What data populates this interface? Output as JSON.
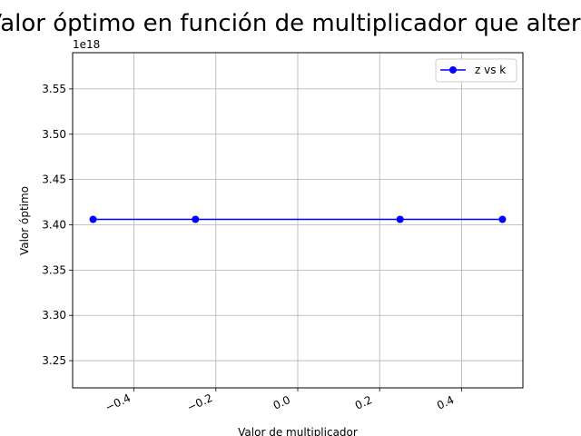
{
  "chart_data": {
    "type": "line",
    "title": "Valor óptimo en función de multiplicador que altera",
    "xlabel": "Valor de multiplicador",
    "ylabel": "Valor óptimo",
    "y_offset_label": "1e18",
    "y_scale": 1e+18,
    "xlim": [
      -0.55,
      0.55
    ],
    "ylim": [
      3.22,
      3.59
    ],
    "x_ticks": [
      -0.4,
      -0.2,
      0.0,
      0.2,
      0.4
    ],
    "x_tick_labels": [
      "−0.4",
      "−0.2",
      "0.0",
      "0.2",
      "0.4"
    ],
    "y_ticks": [
      3.25,
      3.3,
      3.35,
      3.4,
      3.45,
      3.5,
      3.55
    ],
    "y_tick_labels": [
      "3.25",
      "3.30",
      "3.35",
      "3.40",
      "3.45",
      "3.50",
      "3.55"
    ],
    "grid": true,
    "legend_position": "top-right",
    "series": [
      {
        "name": "z vs k",
        "color": "#0000ff",
        "marker": "circle",
        "x": [
          -0.5,
          -0.25,
          0.25,
          0.5
        ],
        "y": [
          3.406e+18,
          3.406e+18,
          3.406e+18,
          3.406e+18
        ]
      }
    ]
  }
}
